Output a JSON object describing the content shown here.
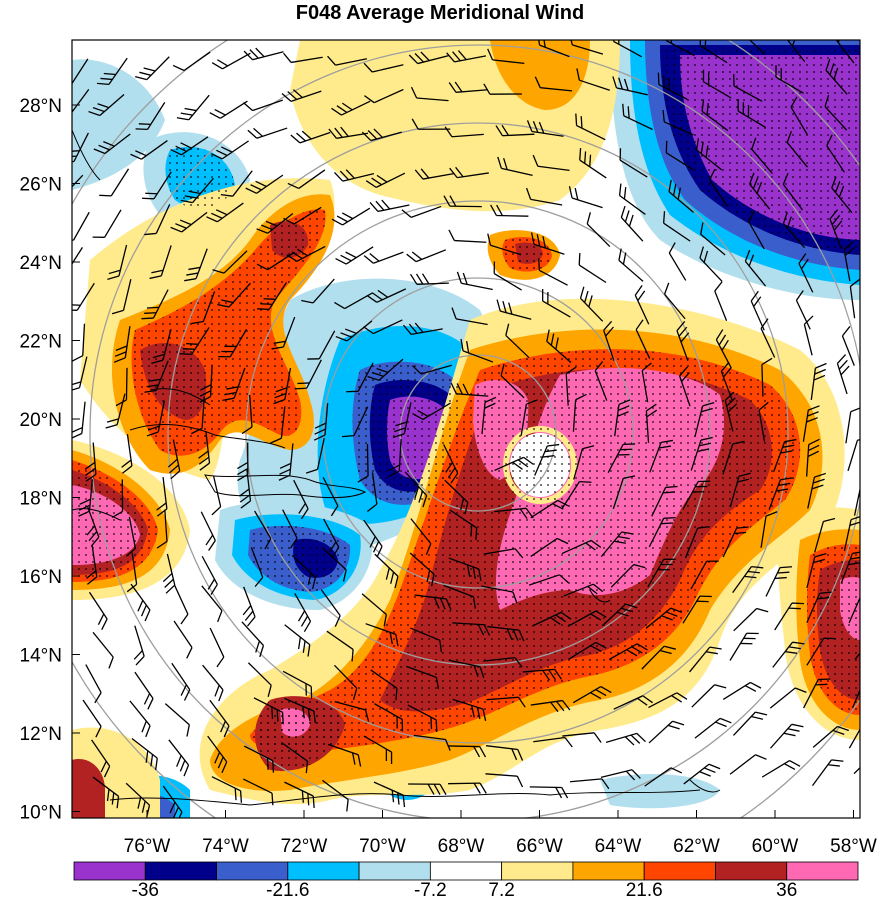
{
  "title": "F048 Average Meridional Wind",
  "latitude_labels": [
    "28°N",
    "26°N",
    "24°N",
    "22°N",
    "20°N",
    "18°N",
    "16°N",
    "14°N",
    "12°N",
    "10°N"
  ],
  "longitude_labels": [
    "76°W",
    "74°W",
    "72°W",
    "70°W",
    "68°W",
    "66°W",
    "64°W",
    "62°W",
    "60°W",
    "58°W"
  ],
  "colorbar": {
    "colors": [
      "#9a32cd",
      "#00008b",
      "#3a5fcd",
      "#00bfff",
      "#b2dfee",
      "#ffffff",
      "#ffeb8b",
      "#ffa500",
      "#ff4500",
      "#b22222",
      "#ff69b4"
    ],
    "tick_labels": [
      "-36",
      "-21.6",
      "-7.2",
      "7.2",
      "21.6",
      "36"
    ]
  },
  "palette": {
    "strong_negative": "#9a32cd",
    "negative_dark": "#00008b",
    "negative_mid": "#3a5fcd",
    "negative_light": "#00bfff",
    "negative_pale": "#b2dfee",
    "near_zero": "#ffffff",
    "positive_pale": "#ffeb8b",
    "positive_light": "#ffa500",
    "positive_mid": "#ff4500",
    "positive_dark": "#b22222",
    "strong_positive": "#ff69b4",
    "range_rings": "#9e9e9e"
  }
}
